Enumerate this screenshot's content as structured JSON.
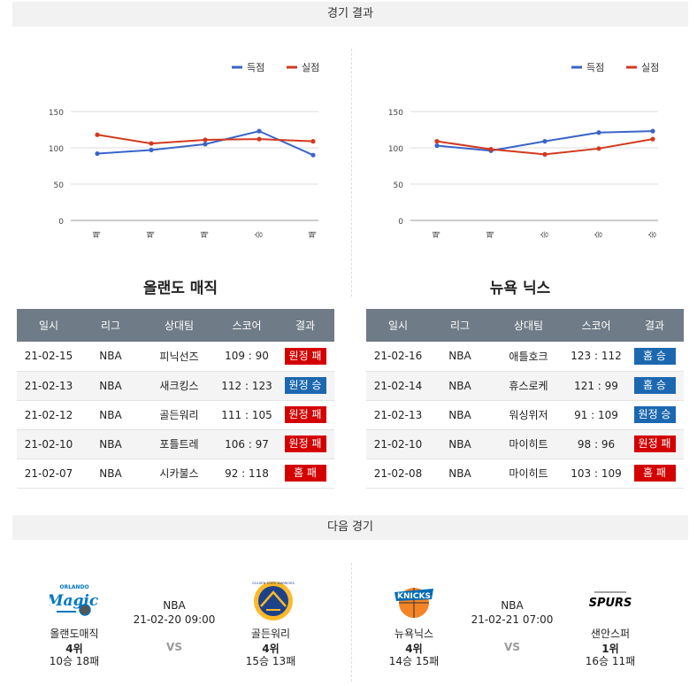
{
  "results_header": "경기 결과",
  "next_header": "다음 경기",
  "legend": {
    "scored": "득점",
    "conceded": "실점"
  },
  "colors": {
    "scored": "#3a64c8",
    "conceded": "#d2391f",
    "win": "#1c68b0",
    "loss": "#d40000",
    "header": "#6f7b86"
  },
  "chart_data": [
    {
      "type": "line",
      "categories": [
        "패",
        "패",
        "패",
        "승",
        "패"
      ],
      "series": [
        {
          "name": "득점",
          "values": [
            92,
            97,
            105,
            123,
            90
          ]
        },
        {
          "name": "실점",
          "values": [
            118,
            106,
            111,
            112,
            109
          ]
        }
      ],
      "yticks": [
        "150",
        "100",
        "50",
        "0"
      ],
      "ylim": [
        0,
        150
      ],
      "grid": true,
      "legend_position": "top-right"
    },
    {
      "type": "line",
      "categories": [
        "패",
        "패",
        "승",
        "승",
        "승"
      ],
      "series": [
        {
          "name": "득점",
          "values": [
            103,
            96,
            109,
            121,
            123
          ]
        },
        {
          "name": "실점",
          "values": [
            109,
            98,
            91,
            99,
            112
          ]
        }
      ],
      "yticks": [
        "150",
        "100",
        "50",
        "0"
      ],
      "ylim": [
        0,
        150
      ],
      "grid": true,
      "legend_position": "top-right"
    }
  ],
  "teams": [
    {
      "title": "올랜도 매직",
      "columns": [
        "일시",
        "리그",
        "상대팀",
        "스코어",
        "결과"
      ],
      "rows": [
        {
          "date": "21-02-15",
          "league": "NBA",
          "opponent": "피닉선즈",
          "score": "109 : 90",
          "result": "원정 패",
          "win": false
        },
        {
          "date": "21-02-13",
          "league": "NBA",
          "opponent": "새크킹스",
          "score": "112 : 123",
          "result": "원정 승",
          "win": true
        },
        {
          "date": "21-02-12",
          "league": "NBA",
          "opponent": "골든워리",
          "score": "111 : 105",
          "result": "원정 패",
          "win": false
        },
        {
          "date": "21-02-10",
          "league": "NBA",
          "opponent": "포틀트레",
          "score": "106 : 97",
          "result": "원정 패",
          "win": false
        },
        {
          "date": "21-02-07",
          "league": "NBA",
          "opponent": "시카불스",
          "score": "92 : 118",
          "result": "홈 패",
          "win": false
        }
      ]
    },
    {
      "title": "뉴욕 닉스",
      "columns": [
        "일시",
        "리그",
        "상대팀",
        "스코어",
        "결과"
      ],
      "rows": [
        {
          "date": "21-02-16",
          "league": "NBA",
          "opponent": "애틀호크",
          "score": "123 : 112",
          "result": "홈 승",
          "win": true
        },
        {
          "date": "21-02-14",
          "league": "NBA",
          "opponent": "휴스로케",
          "score": "121 : 99",
          "result": "홈 승",
          "win": true
        },
        {
          "date": "21-02-13",
          "league": "NBA",
          "opponent": "워싱위저",
          "score": "91 : 109",
          "result": "원정 승",
          "win": true
        },
        {
          "date": "21-02-10",
          "league": "NBA",
          "opponent": "마이히트",
          "score": "98 : 96",
          "result": "원정 패",
          "win": false
        },
        {
          "date": "21-02-08",
          "league": "NBA",
          "opponent": "마이히트",
          "score": "103 : 109",
          "result": "홈 패",
          "win": false
        }
      ]
    }
  ],
  "next_games": [
    {
      "league": "NBA",
      "datetime": "21-02-20 09:00",
      "vs": "VS",
      "home": {
        "name": "올랜도매직",
        "rank": "4위",
        "record": "10승 18패",
        "logo": "orlando-magic-logo"
      },
      "away": {
        "name": "골든워리",
        "rank": "4위",
        "record": "15승 13패",
        "logo": "golden-state-warriors-logo",
        "logo_text": "GOLDEN STATE WARRIORS"
      }
    },
    {
      "league": "NBA",
      "datetime": "21-02-21 07:00",
      "vs": "VS",
      "home": {
        "name": "뉴욕닉스",
        "rank": "4위",
        "record": "14승 15패",
        "logo": "new-york-knicks-logo",
        "logo_text": "KNICKS"
      },
      "away": {
        "name": "샌안스퍼",
        "rank": "1위",
        "record": "16승 11패",
        "logo": "san-antonio-spurs-logo",
        "logo_text": "SPURS"
      }
    }
  ]
}
